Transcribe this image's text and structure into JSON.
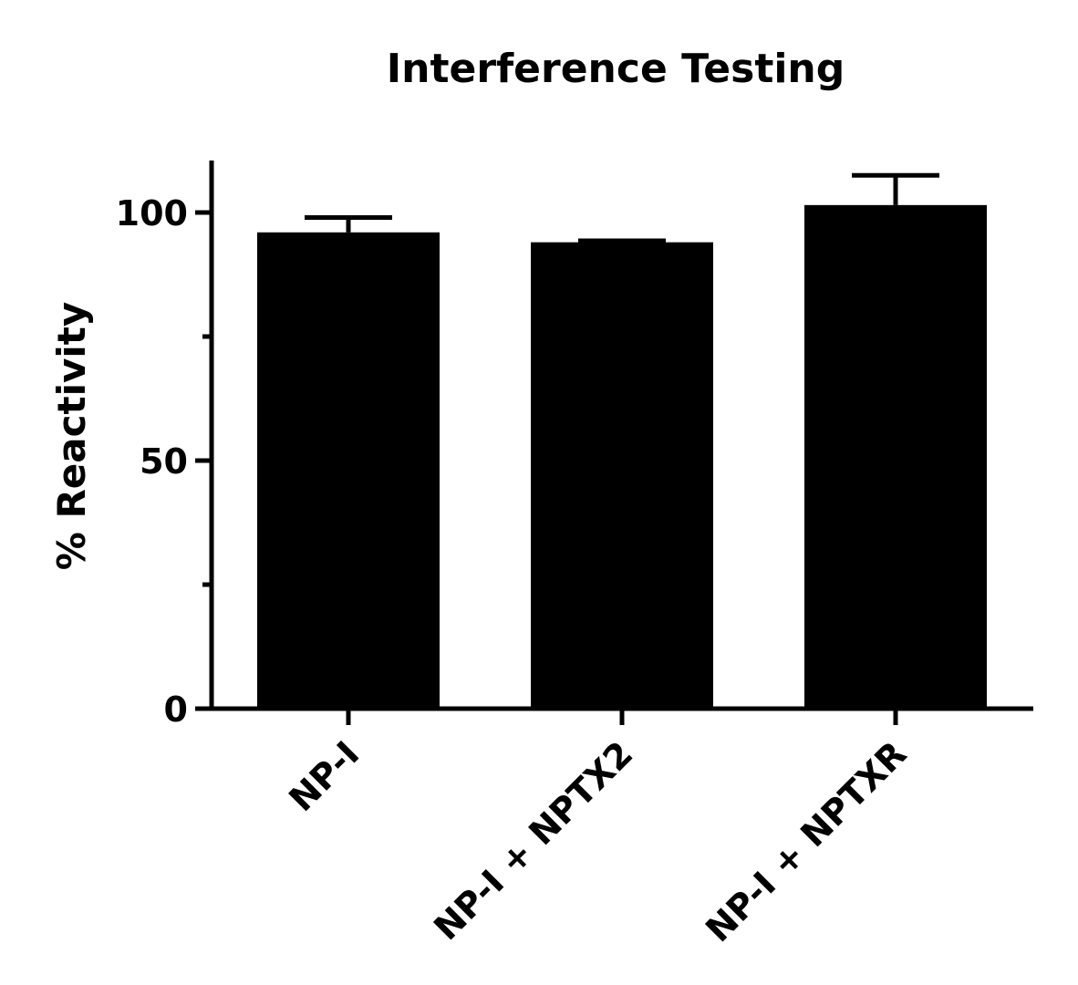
{
  "chart_data": {
    "type": "bar",
    "title": "Interference Testing",
    "xlabel": "",
    "ylabel": "% Reactivity",
    "categories": [
      "NP-I",
      "NP-I + NPTX2",
      "NP-I + NPTXR"
    ],
    "values": [
      96,
      94,
      101.5
    ],
    "error_upper": [
      99,
      94.3,
      107.5
    ],
    "ylim": [
      0,
      110
    ],
    "yticks_major": [
      0,
      50,
      100
    ],
    "yticks_minor": [
      25,
      75
    ],
    "colors": {
      "bar": "#000000",
      "axis": "#000000",
      "background": "#ffffff"
    },
    "grid": false,
    "legend": "none"
  }
}
